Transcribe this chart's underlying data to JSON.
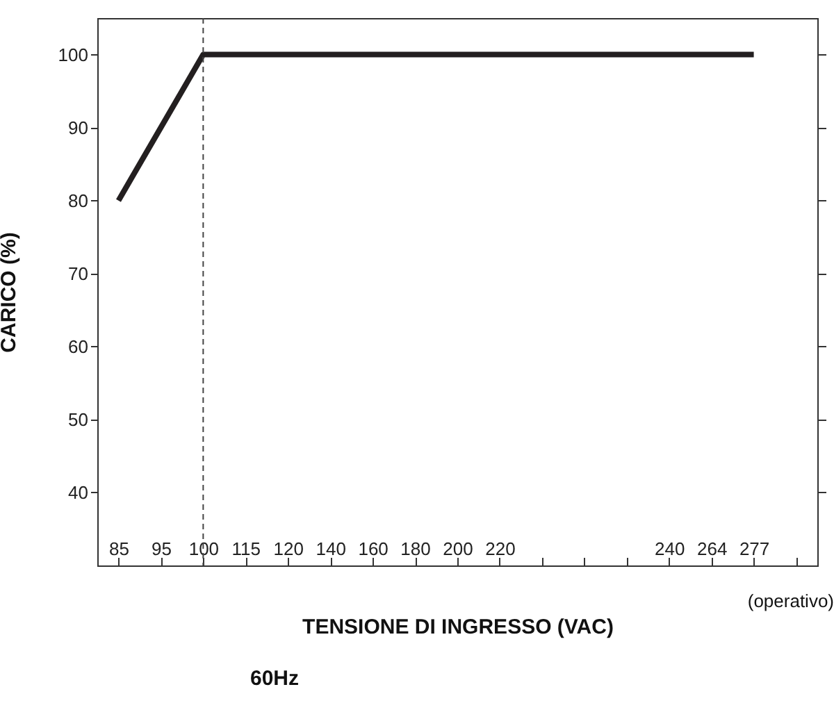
{
  "chart_data": {
    "type": "line",
    "xlabel": "TENSIONE DI INGRESSO (VAC)",
    "ylabel": "CARICO (%)",
    "categories": [
      "85",
      "95",
      "100",
      "115",
      "120",
      "140",
      "160",
      "180",
      "200",
      "220",
      null,
      null,
      null,
      "240",
      "264",
      "277",
      null
    ],
    "series": [
      {
        "color": "#231f20",
        "x": [
          "85",
          "100",
          "277"
        ],
        "values": [
          80,
          100,
          100
        ]
      }
    ],
    "ylim": [
      30,
      105
    ],
    "yticks": [
      40,
      50,
      60,
      70,
      80,
      90,
      100
    ],
    "ref_lines": [
      {
        "axis": "x",
        "value": "100",
        "line_style": "dashed",
        "color": "#444444"
      }
    ],
    "annotations": [
      "(operativo)",
      "60Hz"
    ],
    "grid": false,
    "marker": "none",
    "line_style": "solid"
  }
}
